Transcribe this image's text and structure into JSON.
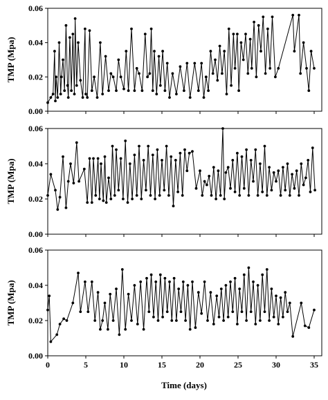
{
  "chart_data": [
    {
      "type": "line",
      "title": "",
      "ylabel": "TMP (Mpa)",
      "xlabel": "",
      "xlim": [
        0,
        36
      ],
      "ylim": [
        0,
        0.06
      ],
      "yticks": [
        "0.00",
        "0.02",
        "0.04",
        "0.06"
      ],
      "xticks": [
        "0",
        "5",
        "10",
        "15",
        "20",
        "25",
        "30",
        "35"
      ],
      "show_xtick_labels": false,
      "grid": false,
      "series": [
        {
          "x": [
            0,
            0.4,
            0.7,
            0.9,
            1.0,
            1.1,
            1.3,
            1.5,
            1.7,
            1.8,
            2.0,
            2.2,
            2.4,
            2.6,
            2.7,
            2.9,
            3.1,
            3.3,
            3.5,
            3.6,
            3.8,
            4.0,
            4.3,
            4.6,
            4.9,
            5.0,
            5.2,
            5.5,
            5.8,
            6.1,
            6.5,
            6.9,
            7.2,
            7.6,
            8.0,
            8.3,
            8.6,
            9.0,
            9.3,
            9.6,
            10.0,
            10.3,
            10.6,
            11.0,
            11.4,
            11.7,
            12.0,
            12.4,
            12.8,
            13.1,
            13.4,
            13.6,
            13.8,
            14.0,
            14.3,
            14.6,
            14.8,
            15.1,
            15.4,
            15.7,
            16.0,
            16.4,
            16.9,
            17.4,
            17.9,
            18.3,
            18.7,
            19.3,
            19.8,
            20.2,
            20.5,
            20.8,
            21.1,
            21.4,
            21.7,
            22.0,
            22.3,
            22.6,
            22.9,
            23.2,
            23.5,
            23.8,
            24.1,
            24.4,
            24.6,
            24.9,
            25.1,
            25.4,
            25.7,
            26.0,
            26.3,
            26.6,
            26.8,
            27.1,
            27.4,
            27.7,
            28.0,
            28.3,
            28.6,
            28.9,
            29.2,
            29.5,
            29.9,
            30.3,
            32.2,
            32.4,
            33.0,
            33.2,
            33.6,
            34.0,
            34.3,
            34.6,
            35.0
          ],
          "values": [
            0.005,
            0.008,
            0.01,
            0.035,
            0.006,
            0.02,
            0.008,
            0.04,
            0.01,
            0.02,
            0.03,
            0.012,
            0.05,
            0.015,
            0.008,
            0.043,
            0.012,
            0.045,
            0.01,
            0.054,
            0.015,
            0.04,
            0.018,
            0.008,
            0.048,
            0.01,
            0.008,
            0.047,
            0.012,
            0.02,
            0.008,
            0.04,
            0.01,
            0.032,
            0.012,
            0.022,
            0.02,
            0.012,
            0.03,
            0.02,
            0.013,
            0.035,
            0.012,
            0.048,
            0.012,
            0.025,
            0.022,
            0.012,
            0.045,
            0.02,
            0.022,
            0.048,
            0.012,
            0.035,
            0.01,
            0.032,
            0.015,
            0.035,
            0.012,
            0.028,
            0.008,
            0.022,
            0.01,
            0.026,
            0.012,
            0.028,
            0.008,
            0.028,
            0.012,
            0.028,
            0.008,
            0.02,
            0.012,
            0.035,
            0.022,
            0.03,
            0.018,
            0.038,
            0.022,
            0.035,
            0.01,
            0.048,
            0.015,
            0.045,
            0.025,
            0.045,
            0.012,
            0.04,
            0.03,
            0.045,
            0.022,
            0.042,
            0.025,
            0.052,
            0.02,
            0.05,
            0.035,
            0.055,
            0.022,
            0.048,
            0.025,
            0.055,
            0.02,
            0.025,
            0.056,
            0.035,
            0.056,
            0.022,
            0.04,
            0.025,
            0.012,
            0.035,
            0.025
          ]
        }
      ]
    },
    {
      "type": "line",
      "title": "",
      "ylabel": "TMP (Mpa)",
      "xlabel": "",
      "xlim": [
        0,
        36
      ],
      "ylim": [
        0,
        0.06
      ],
      "yticks": [
        "0.00",
        "0.02",
        "0.04",
        "0.06"
      ],
      "xticks": [
        "0",
        "5",
        "10",
        "15",
        "20",
        "25",
        "30",
        "35"
      ],
      "show_xtick_labels": false,
      "grid": false,
      "series": [
        {
          "x": [
            0,
            0.4,
            1.0,
            1.3,
            1.6,
            2.0,
            2.4,
            2.7,
            3.0,
            3.4,
            3.8,
            4.1,
            4.8,
            5.2,
            5.5,
            5.8,
            6.0,
            6.3,
            6.6,
            6.8,
            7.0,
            7.3,
            7.5,
            7.7,
            8.0,
            8.3,
            8.5,
            8.8,
            9.0,
            9.3,
            9.6,
            9.9,
            10.2,
            10.5,
            10.8,
            11.1,
            11.4,
            11.7,
            12.0,
            12.3,
            12.6,
            12.9,
            13.2,
            13.5,
            13.8,
            14.1,
            14.4,
            14.7,
            15.0,
            15.3,
            15.6,
            15.9,
            16.2,
            16.5,
            16.8,
            17.1,
            17.4,
            17.7,
            18.0,
            18.3,
            18.6,
            19.0,
            19.5,
            20.0,
            20.3,
            20.6,
            20.9,
            21.2,
            21.5,
            21.8,
            22.1,
            22.4,
            22.7,
            23.0,
            23.2,
            23.4,
            23.7,
            24.0,
            24.3,
            24.6,
            24.9,
            25.2,
            25.5,
            25.8,
            26.1,
            26.4,
            26.7,
            27.0,
            27.3,
            27.6,
            27.9,
            28.2,
            28.5,
            28.8,
            29.1,
            29.4,
            29.7,
            30.0,
            30.3,
            30.6,
            30.9,
            31.2,
            31.5,
            31.8,
            32.1,
            32.4,
            32.7,
            33.0,
            33.3,
            33.6,
            33.9,
            34.2,
            34.5,
            34.8,
            35.1
          ],
          "values": [
            0.022,
            0.034,
            0.025,
            0.014,
            0.021,
            0.044,
            0.015,
            0.03,
            0.04,
            0.029,
            0.052,
            0.03,
            0.037,
            0.018,
            0.043,
            0.018,
            0.043,
            0.022,
            0.043,
            0.02,
            0.04,
            0.019,
            0.044,
            0.018,
            0.032,
            0.02,
            0.05,
            0.022,
            0.048,
            0.025,
            0.043,
            0.02,
            0.053,
            0.018,
            0.04,
            0.02,
            0.045,
            0.022,
            0.05,
            0.02,
            0.042,
            0.025,
            0.05,
            0.022,
            0.045,
            0.02,
            0.048,
            0.022,
            0.042,
            0.025,
            0.05,
            0.022,
            0.044,
            0.016,
            0.042,
            0.024,
            0.046,
            0.022,
            0.048,
            0.036,
            0.046,
            0.047,
            0.026,
            0.036,
            0.022,
            0.03,
            0.028,
            0.033,
            0.022,
            0.038,
            0.02,
            0.036,
            0.022,
            0.06,
            0.02,
            0.035,
            0.038,
            0.026,
            0.042,
            0.024,
            0.046,
            0.022,
            0.044,
            0.026,
            0.048,
            0.022,
            0.042,
            0.03,
            0.048,
            0.022,
            0.04,
            0.024,
            0.05,
            0.022,
            0.038,
            0.025,
            0.035,
            0.03,
            0.036,
            0.022,
            0.038,
            0.025,
            0.04,
            0.022,
            0.034,
            0.026,
            0.036,
            0.022,
            0.04,
            0.028,
            0.032,
            0.042,
            0.024,
            0.049,
            0.025
          ]
        }
      ]
    },
    {
      "type": "line",
      "title": "",
      "ylabel": "TMP (Mpa)",
      "xlabel": "Time (days)",
      "xlim": [
        0,
        36
      ],
      "ylim": [
        0,
        0.06
      ],
      "yticks": [
        "0.00",
        "0.02",
        "0.04",
        "0.06"
      ],
      "xticks": [
        "0",
        "5",
        "10",
        "15",
        "20",
        "25",
        "30",
        "35"
      ],
      "show_xtick_labels": true,
      "grid": false,
      "series": [
        {
          "x": [
            0,
            0.2,
            0.4,
            1.2,
            1.6,
            2.1,
            2.5,
            3.3,
            4.0,
            4.3,
            4.9,
            5.3,
            5.8,
            6.2,
            6.6,
            6.9,
            7.2,
            7.5,
            7.9,
            8.2,
            8.6,
            9.0,
            9.4,
            9.8,
            10.2,
            10.6,
            11.0,
            11.4,
            11.8,
            12.2,
            12.6,
            13.0,
            13.3,
            13.6,
            13.9,
            14.2,
            14.5,
            14.8,
            15.1,
            15.4,
            15.7,
            16.0,
            16.3,
            16.6,
            16.9,
            17.2,
            17.5,
            17.8,
            18.1,
            18.4,
            18.7,
            19.0,
            19.4,
            19.8,
            20.2,
            20.6,
            21.0,
            21.4,
            21.8,
            22.2,
            22.5,
            22.8,
            23.1,
            23.4,
            23.7,
            24.0,
            24.3,
            24.6,
            24.9,
            25.2,
            25.5,
            25.8,
            26.1,
            26.4,
            26.7,
            27.0,
            27.3,
            27.6,
            27.9,
            28.2,
            28.5,
            28.8,
            29.1,
            29.4,
            29.7,
            30.0,
            30.3,
            30.6,
            30.9,
            31.2,
            31.5,
            31.8,
            32.2,
            33.3,
            33.8,
            34.3,
            35.0
          ],
          "values": [
            0.026,
            0.034,
            0.008,
            0.012,
            0.018,
            0.021,
            0.02,
            0.03,
            0.047,
            0.025,
            0.042,
            0.025,
            0.042,
            0.02,
            0.036,
            0.015,
            0.02,
            0.03,
            0.015,
            0.035,
            0.02,
            0.038,
            0.012,
            0.049,
            0.015,
            0.035,
            0.02,
            0.04,
            0.018,
            0.042,
            0.015,
            0.044,
            0.025,
            0.046,
            0.022,
            0.042,
            0.02,
            0.046,
            0.022,
            0.044,
            0.025,
            0.042,
            0.02,
            0.044,
            0.02,
            0.038,
            0.025,
            0.042,
            0.02,
            0.04,
            0.015,
            0.042,
            0.016,
            0.036,
            0.024,
            0.042,
            0.02,
            0.036,
            0.018,
            0.034,
            0.022,
            0.038,
            0.02,
            0.04,
            0.022,
            0.042,
            0.025,
            0.044,
            0.018,
            0.038,
            0.025,
            0.046,
            0.02,
            0.05,
            0.025,
            0.042,
            0.018,
            0.04,
            0.02,
            0.046,
            0.025,
            0.049,
            0.02,
            0.038,
            0.022,
            0.034,
            0.018,
            0.033,
            0.022,
            0.036,
            0.025,
            0.03,
            0.011,
            0.03,
            0.017,
            0.016,
            0.026
          ]
        }
      ]
    }
  ]
}
